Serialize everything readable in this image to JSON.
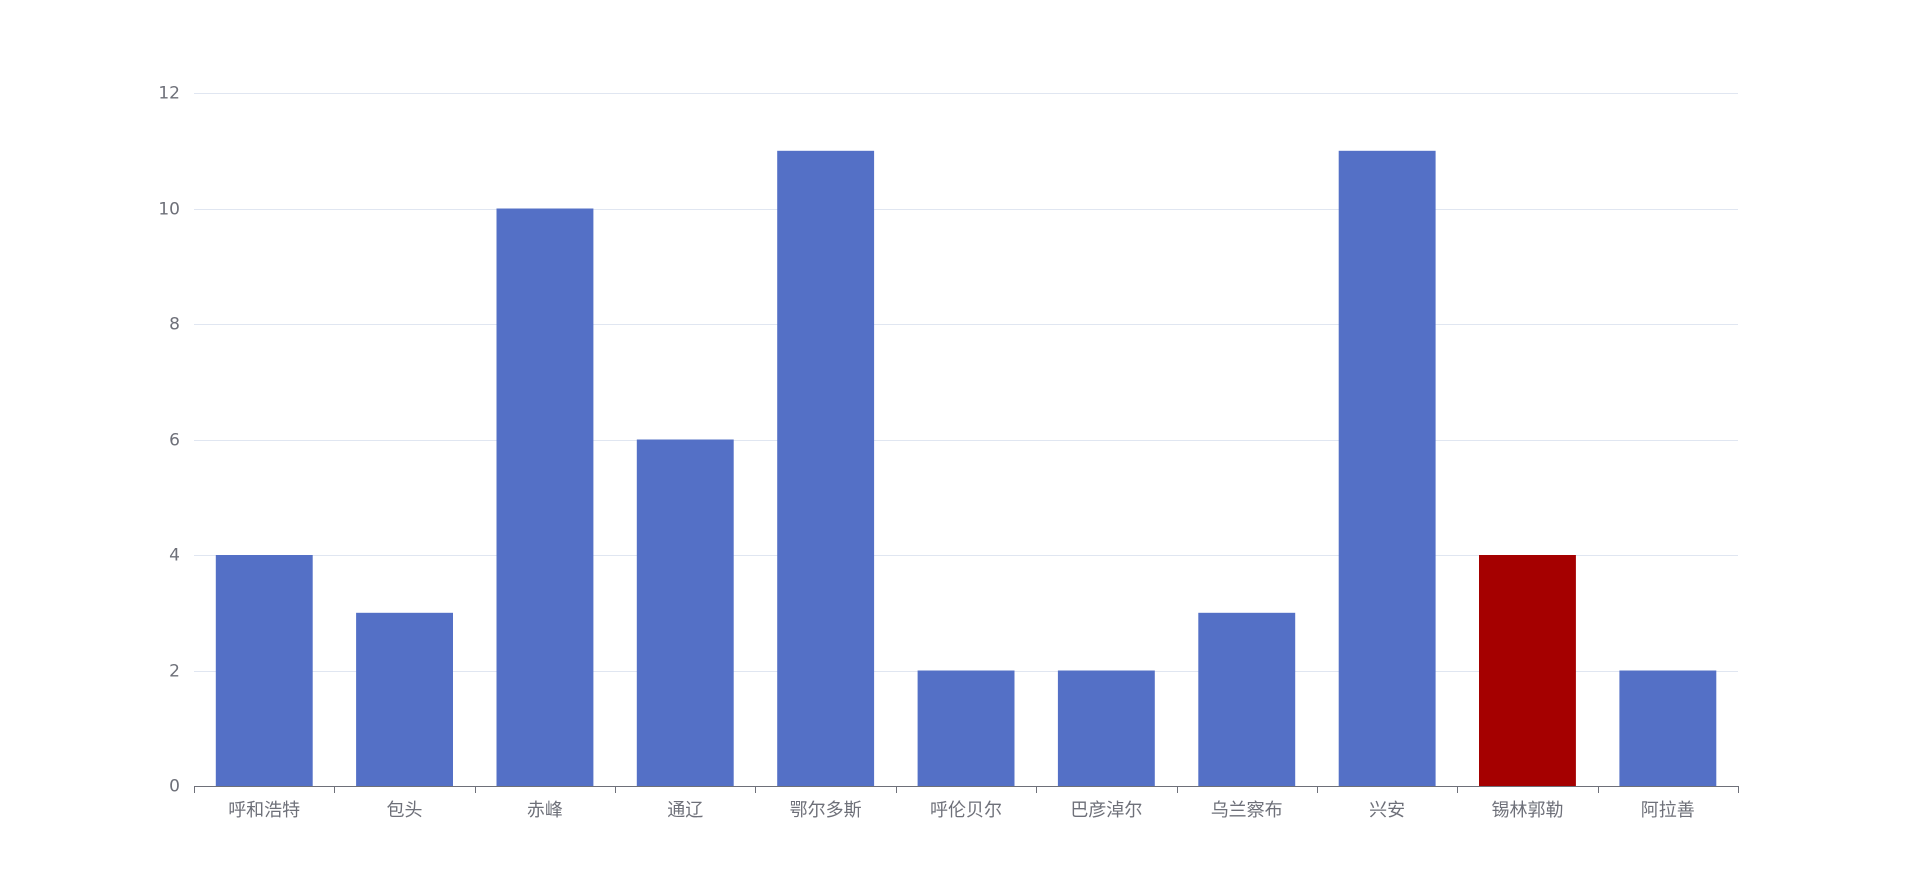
{
  "chart_data": {
    "type": "bar",
    "categories": [
      "呼和浩特",
      "包头",
      "赤峰",
      "通辽",
      "鄂尔多斯",
      "呼伦贝尔",
      "巴彦淖尔",
      "乌兰察布",
      "兴安",
      "锡林郭勒",
      "阿拉善"
    ],
    "values": [
      4,
      3,
      10,
      6,
      11,
      2,
      2,
      3,
      11,
      4,
      2
    ],
    "highlight_index": 9,
    "colors": {
      "bar": "#5470c6",
      "highlight": "#a50000",
      "grid": "#e0e6f1",
      "axis": "#6e7079"
    },
    "ylim": [
      0,
      12
    ],
    "yticks": [
      0,
      2,
      4,
      6,
      8,
      10,
      12
    ],
    "title": "",
    "xlabel": "",
    "ylabel": "",
    "grid": true
  }
}
